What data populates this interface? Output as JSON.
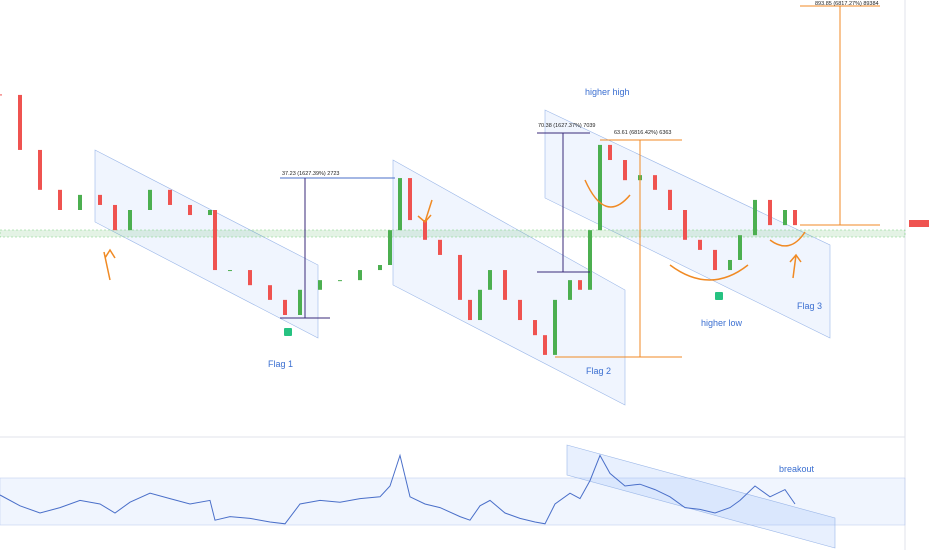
{
  "chart_data": {
    "type": "candlestick",
    "x": [
      0,
      20,
      40,
      60,
      80,
      100,
      115,
      130,
      150,
      170,
      190,
      210,
      215,
      230,
      250,
      270,
      285,
      300,
      320,
      340,
      360,
      380,
      390,
      400,
      410,
      425,
      440,
      460,
      470,
      480,
      490,
      505,
      520,
      535,
      545,
      555,
      570,
      580,
      590,
      600,
      610,
      625,
      640,
      655,
      670,
      685,
      700,
      715,
      730,
      740,
      755,
      770,
      785,
      795
    ],
    "values": [
      77.4,
      64.3,
      54.8,
      50,
      53.6,
      51.2,
      45.2,
      50,
      54.8,
      51.2,
      48.8,
      50,
      35.7,
      35.7,
      32.1,
      28.6,
      25,
      31,
      33.3,
      33.3,
      35.7,
      36.9,
      45.2,
      57.6,
      47.6,
      42.9,
      39.3,
      28.6,
      23.8,
      31,
      35.7,
      28.6,
      23.8,
      20.2,
      15.5,
      28.6,
      33.3,
      31,
      45.2,
      65.5,
      61.9,
      57.1,
      58.3,
      54.8,
      50,
      42.9,
      40.5,
      35.7,
      38.1,
      44,
      52.4,
      46.4,
      50,
      46.4
    ],
    "rsi": [
      50,
      38,
      30,
      36,
      44,
      40,
      30,
      42,
      52,
      46,
      40,
      44,
      22,
      26,
      24,
      20,
      18,
      40,
      44,
      42,
      46,
      48,
      60,
      94,
      48,
      40,
      36,
      26,
      22,
      38,
      44,
      30,
      24,
      20,
      18,
      40,
      52,
      46,
      66,
      94,
      74,
      60,
      62,
      56,
      48,
      36,
      34,
      30,
      36,
      44,
      60,
      48,
      56,
      40
    ],
    "xlim": [
      0,
      905
    ],
    "ylim": [
      0,
      100
    ],
    "rsi_lim": [
      0,
      100
    ],
    "up_color": "#4caf50",
    "down_color": "#ef5350",
    "rsi_color": "#4a6fc9",
    "annotations": [
      "higher high",
      "Flag 1",
      "Flag 2",
      "Flag 3",
      "higher low",
      "breakout",
      "37.23 (1627.39%) 2723",
      "70.38 (1627.37%) 7039",
      "63.61 (6816.42%) 6363",
      "893.85 (6817.27%) 89384"
    ]
  }
}
